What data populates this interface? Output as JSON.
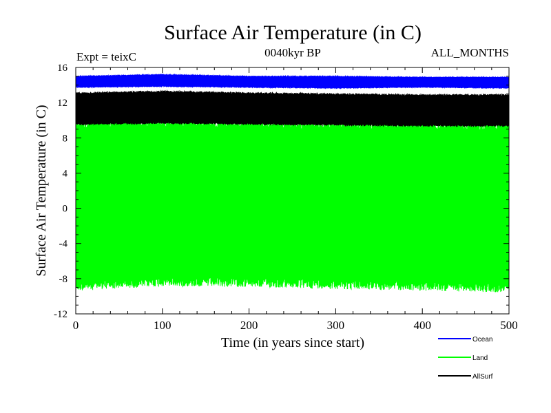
{
  "chart_data": {
    "type": "line",
    "title": "Surface Air Temperature (in C)",
    "subtitle_left": "Expt = teixC",
    "subtitle_center": "0040kyr BP",
    "subtitle_right": "ALL_MONTHS",
    "xlabel": "Time (in years since start)",
    "ylabel": "Surface Air Temperature (in C)",
    "xlim": [
      0,
      500
    ],
    "ylim": [
      -12,
      16
    ],
    "x_ticks": [
      "0",
      "100",
      "200",
      "300",
      "400",
      "500"
    ],
    "y_ticks": [
      "-12",
      "-8",
      "-4",
      "0",
      "4",
      "8",
      "12",
      "16"
    ],
    "grid": false,
    "legend_position": "bottom-right",
    "series": [
      {
        "name": "Ocean",
        "color": "#0000ff",
        "envelope_min": [
          13.8,
          13.9,
          13.8,
          13.7,
          13.8,
          13.7
        ],
        "envelope_max": [
          15.0,
          15.2,
          15.0,
          15.0,
          14.9,
          14.9
        ]
      },
      {
        "name": "Land",
        "color": "#00ff00",
        "envelope_min": [
          -8.3,
          -7.8,
          -7.9,
          -8.1,
          -8.3,
          -8.5
        ],
        "envelope_max": [
          9.8,
          10.0,
          9.8,
          9.7,
          9.6,
          9.6
        ]
      },
      {
        "name": "AllSurf",
        "color": "#000000",
        "envelope_min": [
          9.7,
          9.8,
          9.7,
          9.6,
          9.5,
          9.5
        ],
        "envelope_max": [
          13.1,
          13.3,
          13.1,
          13.0,
          12.9,
          12.9
        ]
      }
    ]
  }
}
